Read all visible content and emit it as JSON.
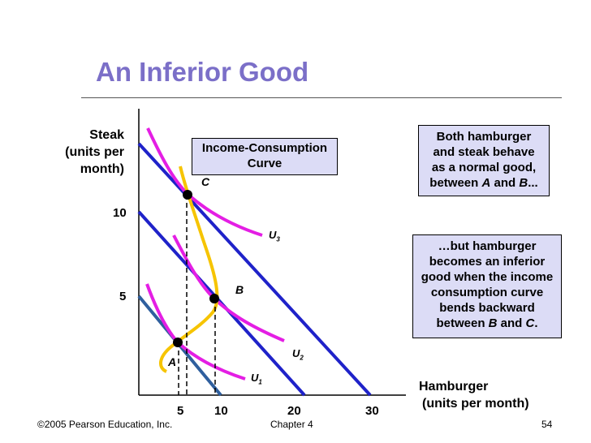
{
  "slide": {
    "title": "An Inferior Good",
    "footer_left": "©2005 Pearson Education, Inc.",
    "footer_center": "Chapter 4",
    "page_number": "54"
  },
  "diagram": {
    "y_axis_label": [
      "Steak",
      "(units per",
      "month)"
    ],
    "x_axis_label": [
      "Hamburger",
      "(units per month)"
    ],
    "y_ticks": [
      "10",
      "5"
    ],
    "x_ticks": [
      "5",
      "10",
      "20",
      "30"
    ],
    "points": {
      "A": "A",
      "B": "B",
      "C": "C"
    },
    "curves": {
      "u1": {
        "base": "U",
        "sub": "1"
      },
      "u2": {
        "base": "U",
        "sub": "2"
      },
      "u3": {
        "base": "U",
        "sub": "3"
      }
    },
    "icc_label": [
      "Income-Consumption",
      "Curve"
    ],
    "note_normal": {
      "lines": [
        "Both hamburger",
        "and steak behave",
        "as a normal good,"
      ],
      "last_prefix": "between ",
      "last_a": "A",
      "last_mid": " and ",
      "last_b": "B",
      "last_suffix": "..."
    },
    "note_inferior": {
      "lines": [
        "…but hamburger",
        "becomes an inferior",
        "good when the income",
        "consumption curve",
        "bends backward"
      ],
      "last_prefix": "between ",
      "last_a": "B",
      "last_mid": " and ",
      "last_b": "C",
      "last_suffix": "."
    },
    "colors": {
      "title": "#7b6fc8",
      "budget_line": "#1f22c9",
      "budget_line_low": "#2f5f9e",
      "indifference": "#e41ee4",
      "income_consumption": "#f6c400",
      "note_fill": "#dcdcf6"
    }
  }
}
